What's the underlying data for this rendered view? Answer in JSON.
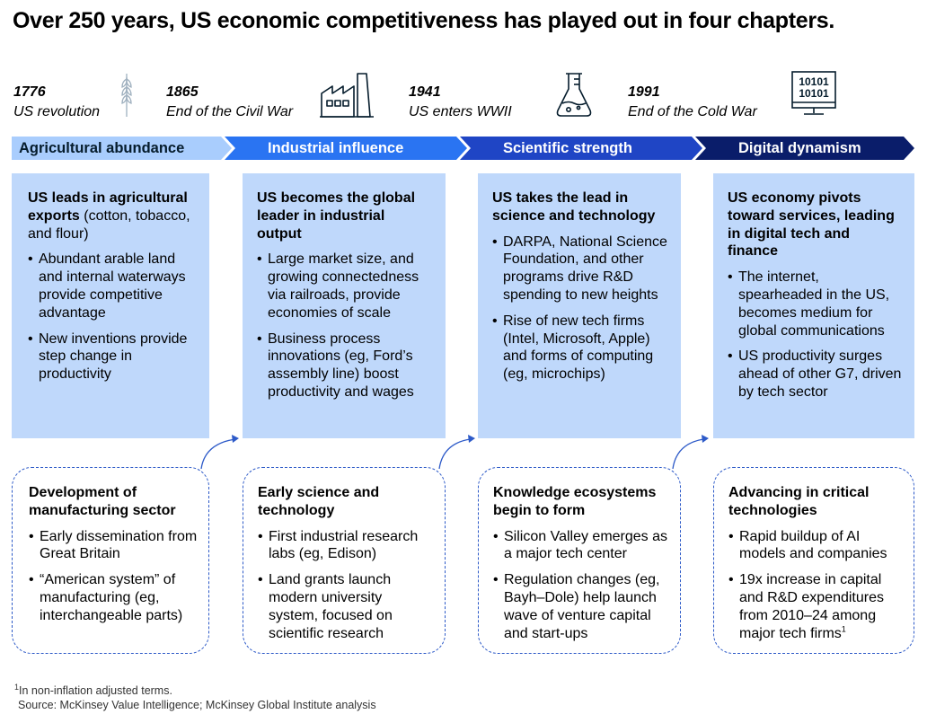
{
  "title": "Over 250 years, US economic competitiveness has played out in four chapters.",
  "timeline": [
    {
      "year": "1776",
      "label": "US revolution",
      "icon": "wheat-icon"
    },
    {
      "year": "1865",
      "label": "End of the Civil War",
      "icon": "factory-icon"
    },
    {
      "year": "1941",
      "label": "US enters WWII",
      "icon": "flask-icon"
    },
    {
      "year": "1991",
      "label": "End of the Cold War",
      "icon": "binary-monitor-icon"
    }
  ],
  "monitor_text": {
    "line1": "10101",
    "line2": "10101"
  },
  "chapters": [
    {
      "banner": "Agricultural abundance",
      "card_head_bold": "US leads in agricultural exports",
      "card_head_rest": " (cotton, tobacco, and flour)",
      "card_items": [
        "Abundant arable land and internal waterways provide competitive advantage",
        "New inventions provide step change in productivity"
      ],
      "foundation_head": "Development of manufacturing sector",
      "foundation_items": [
        "Early dissemination from Great Britain",
        "“American system” of manufacturing (eg, interchangeable parts)"
      ]
    },
    {
      "banner": "Industrial influence",
      "card_head_bold": "US becomes the global leader in industrial output",
      "card_head_rest": "",
      "card_items": [
        "Large market size, and growing connectedness via railroads, provide economies of scale",
        "Business process innovations (eg, Ford’s assembly line) boost productivity and wages"
      ],
      "foundation_head": "Early science and technology",
      "foundation_items": [
        "First industrial research labs (eg, Edison)",
        "Land grants launch modern university system, focused on scientific research"
      ]
    },
    {
      "banner": "Scientific strength",
      "card_head_bold": "US takes the lead in science and technology",
      "card_head_rest": "",
      "card_items": [
        "DARPA, National Science Foundation, and other programs drive R&D spending to new heights",
        "Rise of new tech firms (Intel, Microsoft, Apple) and forms of computing (eg, microchips)"
      ],
      "foundation_head": "Knowledge ecosystems begin to form",
      "foundation_items": [
        "Silicon Valley emerges as a major tech center",
        "Regulation changes (eg, Bayh–Dole) help launch wave of venture capital and start-ups"
      ]
    },
    {
      "banner": "Digital dynamism",
      "card_head_bold": "US economy pivots toward services, leading in digital tech and finance",
      "card_head_rest": "",
      "card_items": [
        "The internet, spearheaded in the US, becomes medium for global communications",
        "US productivity surges ahead of other G7, driven by tech sector"
      ],
      "foundation_head": "Advancing in critical technologies",
      "foundation_items": [
        "Rapid buildup of AI models and companies",
        "19x increase in capital and R&D expenditures from 2010–24 among major tech firms"
      ],
      "foundation_last_sup": "1"
    }
  ],
  "footnote": {
    "marker": "1",
    "text": "In non-inflation adjusted terms."
  },
  "source": "Source: McKinsey Value Intelligence; McKinsey Global Institute analysis",
  "colors": {
    "banner1": "#a9cdfd",
    "banner2": "#2a74f2",
    "banner3": "#1f45c5",
    "banner4": "#0a1d6a",
    "card": "#bfd8fb",
    "dash_border": "#2d5ac8",
    "arrow": "#2d5ac8"
  }
}
